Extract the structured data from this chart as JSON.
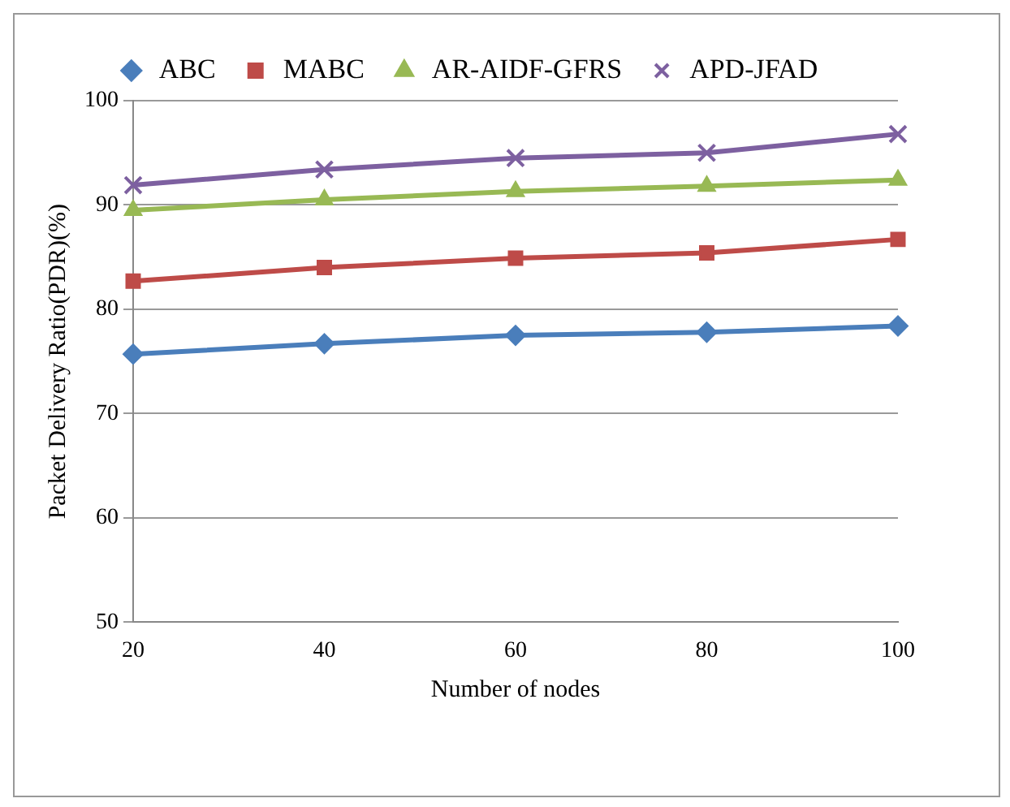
{
  "chart_data": {
    "type": "line",
    "xlabel": "Number of nodes",
    "ylabel": "Packet Delivery Ratio(PDR)(%)",
    "categories": [
      "20",
      "40",
      "60",
      "80",
      "100"
    ],
    "series": [
      {
        "name": "ABC",
        "color": "#4a7ebb",
        "marker": "diamond",
        "values": [
          75.7,
          76.7,
          77.5,
          77.8,
          78.4
        ]
      },
      {
        "name": "MABC",
        "color": "#be4b48",
        "marker": "square",
        "values": [
          82.7,
          84.0,
          84.9,
          85.4,
          86.7
        ]
      },
      {
        "name": "AR-AIDF-GFRS",
        "color": "#98b954",
        "marker": "triangle",
        "values": [
          89.5,
          90.5,
          91.3,
          91.8,
          92.4
        ]
      },
      {
        "name": "APD-JFAD",
        "color": "#7d60a0",
        "marker": "cross",
        "values": [
          91.9,
          93.4,
          94.5,
          95.0,
          96.8
        ]
      }
    ],
    "ylim": [
      50,
      100
    ],
    "yticks": [
      50,
      60,
      70,
      80,
      90,
      100
    ],
    "grid": "y",
    "legend": "top",
    "line_style": "solid"
  }
}
